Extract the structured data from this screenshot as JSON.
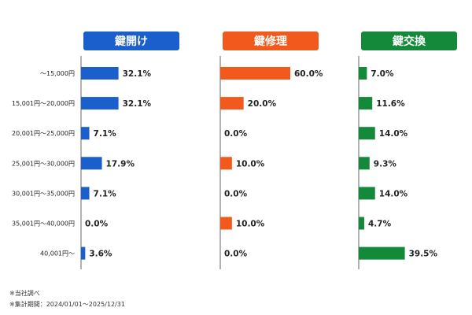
{
  "chart_data": {
    "type": "bar",
    "orientation": "horizontal",
    "xlim": [
      0,
      60
    ],
    "categories": [
      "～15,000円",
      "15,001円～20,000円",
      "20,001円～25,000円",
      "25,001円～30,000円",
      "30,001円～35,000円",
      "35,001円～40,000円",
      "40,001円～"
    ],
    "series": [
      {
        "name": "鍵開け",
        "color": "#1a5fcc",
        "values": [
          32.1,
          32.1,
          7.1,
          17.9,
          7.1,
          0.0,
          3.6
        ],
        "labels": [
          "32.1%",
          "32.1%",
          "7.1%",
          "17.9%",
          "7.1%",
          "0.0%",
          "3.6%"
        ]
      },
      {
        "name": "鍵修理",
        "color": "#f15a1c",
        "values": [
          60.0,
          20.0,
          0.0,
          10.0,
          0.0,
          10.0,
          0.0
        ],
        "labels": [
          "60.0%",
          "20.0%",
          "0.0%",
          "10.0%",
          "0.0%",
          "10.0%",
          "0.0%"
        ]
      },
      {
        "name": "鍵交換",
        "color": "#15893a",
        "values": [
          7.0,
          11.6,
          14.0,
          9.3,
          14.0,
          4.7,
          39.5
        ],
        "labels": [
          "7.0%",
          "11.6%",
          "14.0%",
          "9.3%",
          "14.0%",
          "4.7%",
          "39.5%"
        ]
      }
    ]
  },
  "notes": {
    "source": "※当社調べ",
    "period": "※集計期間：2024/01/01～2025/12/31"
  }
}
